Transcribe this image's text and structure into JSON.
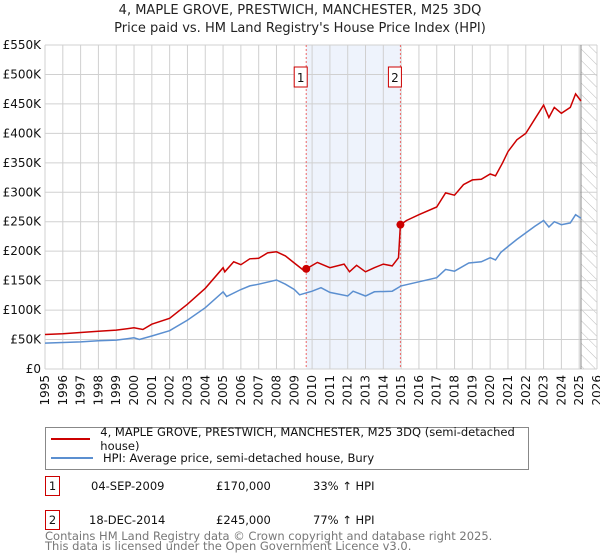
{
  "chart_data": {
    "type": "line",
    "title": "4, MAPLE GROVE, PRESTWICH, MANCHESTER, M25 3DQ",
    "subtitle": "Price paid vs. HM Land Registry's House Price Index (HPI)",
    "xlim": [
      1995,
      2026
    ],
    "ylim": [
      0,
      550000
    ],
    "x_ticks": [
      "1995",
      "1996",
      "1997",
      "1998",
      "1999",
      "2000",
      "2001",
      "2002",
      "2003",
      "2004",
      "2005",
      "2006",
      "2007",
      "2008",
      "2009",
      "2010",
      "2011",
      "2012",
      "2013",
      "2014",
      "2015",
      "2016",
      "2017",
      "2018",
      "2019",
      "2020",
      "2021",
      "2022",
      "2023",
      "2024",
      "2025",
      "2026"
    ],
    "y_ticks": [
      {
        "v": 0,
        "label": "£0"
      },
      {
        "v": 50000,
        "label": "£50K"
      },
      {
        "v": 100000,
        "label": "£100K"
      },
      {
        "v": 150000,
        "label": "£150K"
      },
      {
        "v": 200000,
        "label": "£200K"
      },
      {
        "v": 250000,
        "label": "£250K"
      },
      {
        "v": 300000,
        "label": "£300K"
      },
      {
        "v": 350000,
        "label": "£350K"
      },
      {
        "v": 400000,
        "label": "£400K"
      },
      {
        "v": 450000,
        "label": "£450K"
      },
      {
        "v": 500000,
        "label": "£500K"
      },
      {
        "v": 550000,
        "label": "£550K"
      }
    ],
    "grid": true,
    "forecast_hatch_from": 2025.1,
    "series": [
      {
        "name": "4, MAPLE GROVE, PRESTWICH, MANCHESTER, M25 3DQ (semi-detached house)",
        "color": "#cc0000",
        "x": [
          1995,
          1996,
          1997,
          1998,
          1999,
          2000,
          2000.5,
          2001,
          2002,
          2003,
          2004,
          2005,
          2005.1,
          2005.6,
          2006,
          2006.5,
          2007,
          2007.5,
          2008,
          2008.5,
          2009,
          2009.5,
          2009.67,
          2010.3,
          2011,
          2011.8,
          2012.1,
          2012.5,
          2013,
          2013.5,
          2014,
          2014.5,
          2014.85,
          2014.96,
          2015.3,
          2016,
          2017,
          2017.5,
          2018,
          2018.5,
          2019,
          2019.5,
          2020,
          2020.3,
          2020.7,
          2021,
          2021.5,
          2022,
          2022.5,
          2023,
          2023.3,
          2023.6,
          2024,
          2024.5,
          2024.8,
          2025.1
        ],
        "y": [
          58600,
          60000,
          62000,
          64000,
          66000,
          70000,
          67000,
          76000,
          86000,
          110000,
          137000,
          172000,
          165000,
          182000,
          177000,
          187000,
          188000,
          197000,
          199000,
          192000,
          180000,
          168000,
          170000,
          181000,
          172000,
          178000,
          165000,
          176000,
          165000,
          172000,
          178000,
          175000,
          189000,
          245000,
          252000,
          262000,
          275000,
          299000,
          295000,
          313000,
          321000,
          322000,
          331000,
          328000,
          350000,
          369000,
          389000,
          400000,
          424000,
          448000,
          427000,
          444000,
          434000,
          444000,
          467000,
          455000
        ]
      },
      {
        "name": "HPI: Average price, semi-detached house, Bury",
        "color": "#5b8fd0",
        "x": [
          1995,
          1996,
          1997,
          1998,
          1999,
          2000,
          2000.3,
          2001,
          2002,
          2003,
          2004,
          2005,
          2005.2,
          2006,
          2006.5,
          2007,
          2008,
          2008.5,
          2009,
          2009.3,
          2010,
          2010.5,
          2011,
          2012,
          2012.3,
          2013,
          2013.5,
          2014.5,
          2015,
          2016,
          2017,
          2017.5,
          2018,
          2018.8,
          2019.5,
          2020,
          2020.3,
          2020.6,
          2021,
          2021.5,
          2022,
          2022.5,
          2023,
          2023.3,
          2023.6,
          2024,
          2024.5,
          2024.8,
          2025.1
        ],
        "y": [
          44000,
          45000,
          46000,
          48000,
          49000,
          53000,
          50000,
          56000,
          65000,
          83000,
          104000,
          131000,
          123000,
          135000,
          141000,
          144000,
          151000,
          144000,
          135000,
          126000,
          132000,
          138000,
          130000,
          124000,
          132000,
          124000,
          131000,
          132000,
          141000,
          148000,
          155000,
          169000,
          166000,
          180000,
          182000,
          189000,
          185000,
          198000,
          208000,
          220000,
          231000,
          242000,
          252000,
          241000,
          250000,
          245000,
          248000,
          262000,
          256000
        ]
      }
    ],
    "annotations": [
      {
        "id": "1",
        "x": 2009.67,
        "y": 170000
      },
      {
        "id": "2",
        "x": 2014.96,
        "y": 245000
      }
    ]
  },
  "legend": {
    "items": [
      "4, MAPLE GROVE, PRESTWICH, MANCHESTER, M25 3DQ (semi-detached house)",
      "HPI: Average price, semi-detached house, Bury"
    ]
  },
  "sales": [
    {
      "id": "1",
      "date": "04-SEP-2009",
      "price": "£170,000",
      "hpi": "33% ↑ HPI"
    },
    {
      "id": "2",
      "date": "18-DEC-2014",
      "price": "£245,000",
      "hpi": "77% ↑ HPI"
    }
  ],
  "footer": {
    "line1": "Contains HM Land Registry data © Crown copyright and database right 2025.",
    "line2": "This data is licensed under the Open Government Licence v3.0."
  }
}
